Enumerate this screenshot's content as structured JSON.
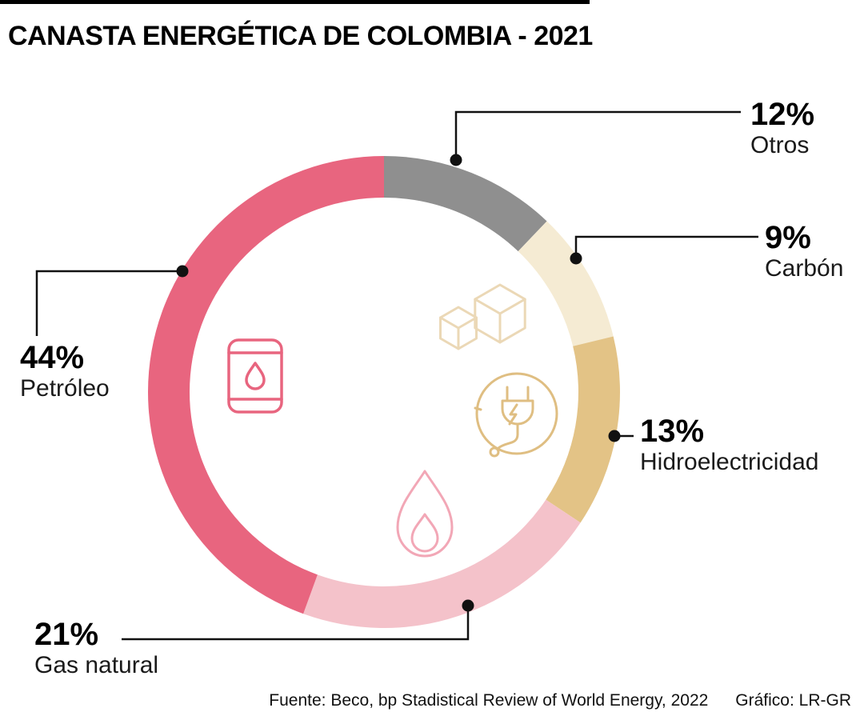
{
  "title": "CANASTA ENERGÉTICA DE COLOMBIA - 2021",
  "footer": {
    "source": "Fuente: Beco, bp Stadistical Review of World Energy, 2022",
    "credit": "Gráfico: LR-GR"
  },
  "chart_data": {
    "type": "pie",
    "subtype": "donut",
    "title": "Canasta energética de Colombia - 2021",
    "unit": "%",
    "order": "clockwise-from-top",
    "legend_position": "callouts-around-donut",
    "segments": [
      {
        "label": "Otros",
        "value": 12,
        "pct_label": "12%",
        "color": "#8F8F8F",
        "icon": null
      },
      {
        "label": "Carbón",
        "value": 9,
        "pct_label": "9%",
        "color": "#F5EBD3",
        "icon": "coal-icon"
      },
      {
        "label": "Hidroelectricidad",
        "value": 13,
        "pct_label": "13%",
        "color": "#E3C386",
        "icon": "electric-plug-icon"
      },
      {
        "label": "Gas natural",
        "value": 21,
        "pct_label": "21%",
        "color": "#F4C2CA",
        "icon": "flame-icon"
      },
      {
        "label": "Petróleo",
        "value": 44,
        "pct_label": "44%",
        "color": "#E8657F",
        "icon": "oil-barrel-icon"
      }
    ]
  },
  "icons": {
    "oil_barrel": {
      "name": "oil-barrel-icon",
      "color": "#E8657F"
    },
    "coal": {
      "name": "coal-icon",
      "color": "#EBD8B6"
    },
    "electric_plug": {
      "name": "electric-plug-icon",
      "color": "#DFBE82"
    },
    "flame": {
      "name": "flame-icon",
      "color": "#F2A7B6"
    }
  },
  "colors": {
    "leader_line": "#111111",
    "text": "#000000",
    "background": "#FFFFFF",
    "top_rule": "#000000"
  }
}
